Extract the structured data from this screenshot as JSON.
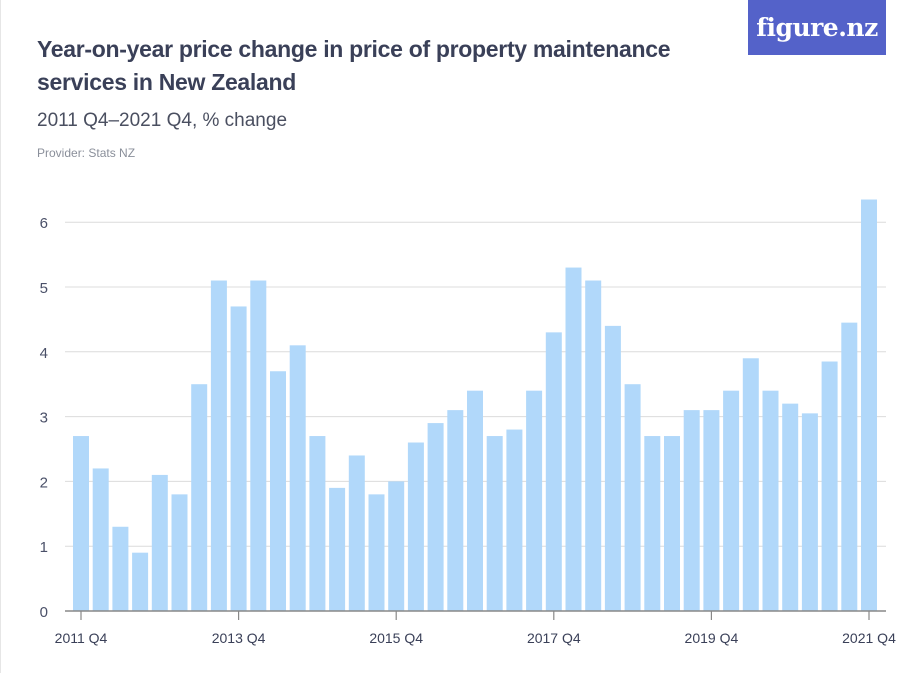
{
  "header": {
    "title": "Year-on-year price change in price of property maintenance services in New Zealand",
    "subtitle": "2011 Q4–2021 Q4, % change",
    "provider": "Provider: Stats NZ",
    "logo": "figure.nz"
  },
  "colors": {
    "bar": "#B1D8FA",
    "logo_bg": "#5462C9",
    "grid": "#dcdcdc",
    "axis": "#888888"
  },
  "chart_data": {
    "type": "bar",
    "title": "Year-on-year price change in price of property maintenance services in New Zealand",
    "subtitle": "2011 Q4–2021 Q4, % change",
    "xlabel": "",
    "ylabel": "% change",
    "ylim": [
      0,
      6.4
    ],
    "yticks": [
      0,
      1,
      2,
      3,
      4,
      5,
      6
    ],
    "grid": true,
    "legend": "none",
    "x_tick_labels": [
      {
        "index": 0,
        "label": "2011 Q4"
      },
      {
        "index": 8,
        "label": "2013 Q4"
      },
      {
        "index": 16,
        "label": "2015 Q4"
      },
      {
        "index": 24,
        "label": "2017 Q4"
      },
      {
        "index": 32,
        "label": "2019 Q4"
      },
      {
        "index": 40,
        "label": "2021 Q4"
      }
    ],
    "categories": [
      "2011 Q4",
      "2012 Q1",
      "2012 Q2",
      "2012 Q3",
      "2012 Q4",
      "2013 Q1",
      "2013 Q2",
      "2013 Q3",
      "2013 Q4",
      "2014 Q1",
      "2014 Q2",
      "2014 Q3",
      "2014 Q4",
      "2015 Q1",
      "2015 Q2",
      "2015 Q3",
      "2015 Q4",
      "2016 Q1",
      "2016 Q2",
      "2016 Q3",
      "2016 Q4",
      "2017 Q1",
      "2017 Q2",
      "2017 Q3",
      "2017 Q4",
      "2018 Q1",
      "2018 Q2",
      "2018 Q3",
      "2018 Q4",
      "2019 Q1",
      "2019 Q2",
      "2019 Q3",
      "2019 Q4",
      "2020 Q1",
      "2020 Q2",
      "2020 Q3",
      "2020 Q4",
      "2021 Q1",
      "2021 Q2",
      "2021 Q3",
      "2021 Q4"
    ],
    "values": [
      2.7,
      2.2,
      1.3,
      0.9,
      2.1,
      1.8,
      3.5,
      5.1,
      4.7,
      5.1,
      3.7,
      4.1,
      2.7,
      1.9,
      2.4,
      1.8,
      2.0,
      2.6,
      2.9,
      3.1,
      3.4,
      2.7,
      2.8,
      3.4,
      4.3,
      5.3,
      5.1,
      4.4,
      3.5,
      2.7,
      2.7,
      3.1,
      3.1,
      3.4,
      3.9,
      3.4,
      3.2,
      3.05,
      3.85,
      4.45,
      6.35
    ]
  }
}
